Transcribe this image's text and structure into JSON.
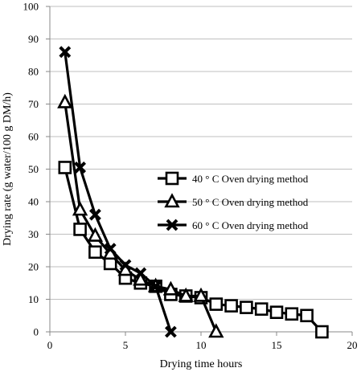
{
  "chart_data": {
    "type": "line",
    "title": "",
    "xlabel": "Drying time hours",
    "ylabel": "Drying rate (g water/100 g DM/h)",
    "xlim": [
      0,
      20
    ],
    "ylim": [
      0,
      100
    ],
    "x_ticks": [
      0,
      5,
      10,
      15,
      20
    ],
    "y_ticks": [
      0,
      10,
      20,
      30,
      40,
      50,
      60,
      70,
      80,
      90,
      100
    ],
    "grid": "horizontal",
    "legend_position": "right-center",
    "series": [
      {
        "name": "40 ° C Oven drying method",
        "marker": "square",
        "color": "#000000",
        "x": [
          1,
          2,
          3,
          4,
          5,
          6,
          7,
          8,
          9,
          10,
          11,
          12,
          13,
          14,
          15,
          16,
          17,
          18
        ],
        "y": [
          50.5,
          31.5,
          24.5,
          21,
          16.5,
          15,
          14,
          11.5,
          11,
          10.5,
          8.5,
          8,
          7.5,
          7,
          6,
          5.5,
          5,
          0
        ]
      },
      {
        "name": "50 ° C Oven drying method",
        "marker": "triangle",
        "color": "#000000",
        "x": [
          1,
          2,
          3,
          4,
          5,
          6,
          7,
          8,
          9,
          10,
          11
        ],
        "y": [
          70.5,
          37.5,
          29.5,
          24,
          19,
          16,
          14,
          13,
          11,
          11,
          0
        ]
      },
      {
        "name": "60 ° C Oven drying method",
        "marker": "x",
        "color": "#000000",
        "x": [
          1,
          2,
          3,
          4,
          5,
          6,
          7,
          8
        ],
        "y": [
          86,
          50.5,
          36,
          25.5,
          20.5,
          18,
          14,
          0
        ]
      }
    ]
  }
}
